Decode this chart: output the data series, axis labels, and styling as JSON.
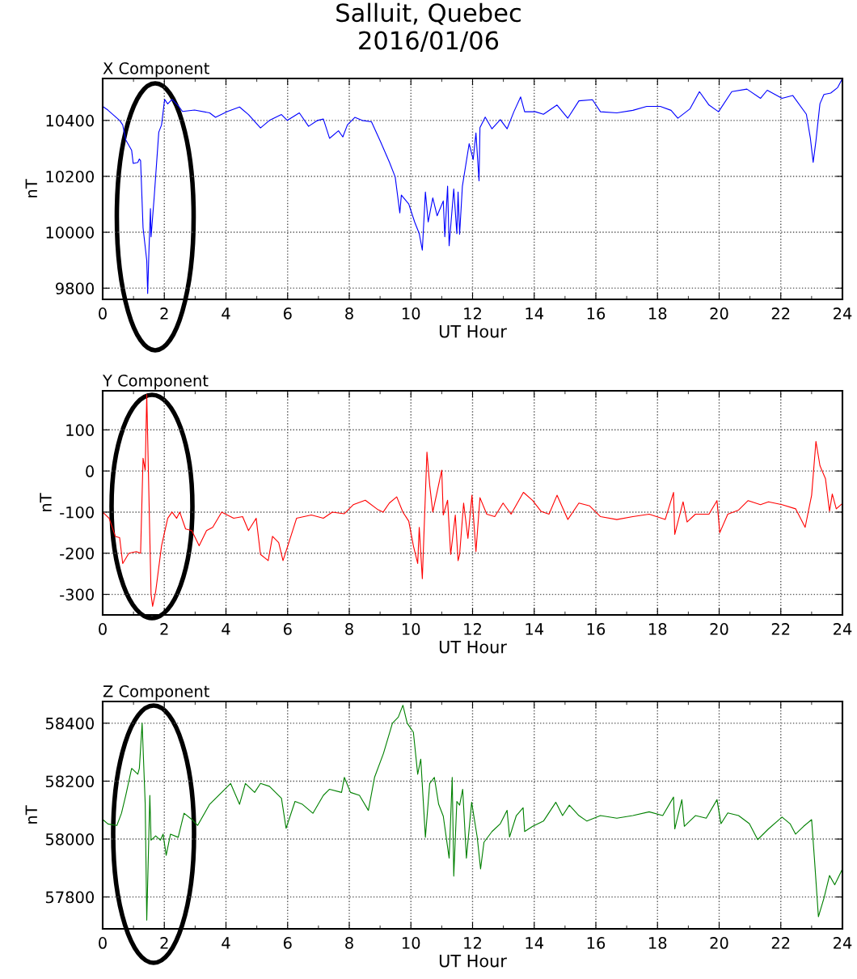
{
  "chart_data": [
    {
      "type": "line",
      "title": "Salluit, Quebec\n2016/01/06",
      "subtitle": "X Component",
      "xlabel": "UT Hour",
      "ylabel": "nT",
      "xlim": [
        0,
        24
      ],
      "xticks": [
        0,
        2,
        4,
        6,
        8,
        10,
        12,
        14,
        16,
        18,
        20,
        22,
        24
      ],
      "ylim": [
        9760,
        10550
      ],
      "yticks": [
        9800,
        10000,
        10200,
        10400
      ],
      "grid": true,
      "legend": false,
      "marker": "none",
      "line_style": "solid",
      "series": [
        {
          "color": "#0000ff",
          "x": [
            0,
            0.17,
            0.55,
            0.65,
            0.75,
            0.94,
            0.99,
            1.14,
            1.19,
            1.23,
            1.31,
            1.43,
            1.46,
            1.5,
            1.55,
            1.57,
            1.67,
            1.82,
            1.91,
            2.01,
            2.11,
            2.25,
            2.45,
            2.59,
            2.98,
            3.47,
            3.66,
            4.05,
            4.44,
            4.73,
            5.12,
            5.41,
            5.8,
            5.99,
            6.38,
            6.68,
            6.97,
            7.16,
            7.36,
            7.65,
            7.79,
            7.94,
            8.18,
            8.42,
            8.72,
            9.01,
            9.3,
            9.49,
            9.64,
            9.69,
            9.93,
            10.12,
            10.27,
            10.37,
            10.47,
            10.56,
            10.71,
            10.85,
            11.05,
            11.1,
            11.19,
            11.24,
            11.39,
            11.49,
            11.53,
            11.58,
            11.67,
            11.89,
            12.02,
            12.11,
            12.21,
            12.24,
            12.41,
            12.63,
            12.9,
            13.12,
            13.34,
            13.56,
            13.69,
            14.04,
            14.3,
            14.74,
            15.09,
            15.45,
            15.89,
            16.15,
            16.68,
            17.2,
            17.65,
            18.09,
            18.44,
            18.66,
            19.05,
            19.36,
            19.67,
            19.98,
            20.41,
            20.9,
            21.34,
            21.56,
            22.04,
            22.39,
            22.83,
            22.96,
            23.05,
            23.14,
            23.27,
            23.4,
            23.62,
            23.84,
            24
          ],
          "values": [
            10450,
            10437,
            10400,
            10384,
            10330,
            10293,
            10246,
            10250,
            10262,
            10256,
            10016,
            9899,
            9781,
            9931,
            10085,
            9984,
            10124,
            10358,
            10384,
            10475,
            10459,
            10475,
            10453,
            10432,
            10437,
            10427,
            10411,
            10432,
            10448,
            10421,
            10373,
            10400,
            10421,
            10400,
            10427,
            10379,
            10400,
            10405,
            10336,
            10363,
            10341,
            10384,
            10411,
            10400,
            10395,
            10325,
            10251,
            10198,
            10069,
            10133,
            10101,
            10037,
            9995,
            9936,
            10144,
            10037,
            10123,
            10059,
            10112,
            9984,
            10165,
            9952,
            10155,
            9995,
            10144,
            9993,
            10165,
            10317,
            10260,
            10355,
            10184,
            10374,
            10412,
            10370,
            10403,
            10370,
            10431,
            10484,
            10431,
            10431,
            10422,
            10455,
            10408,
            10470,
            10474,
            10431,
            10427,
            10436,
            10450,
            10450,
            10436,
            10408,
            10441,
            10503,
            10455,
            10431,
            10503,
            10512,
            10479,
            10508,
            10479,
            10489,
            10422,
            10336,
            10250,
            10327,
            10460,
            10493,
            10498,
            10517,
            10550
          ]
        }
      ]
    },
    {
      "type": "line",
      "subtitle": "Y Component",
      "xlabel": "UT Hour",
      "ylabel": "nT",
      "xlim": [
        0,
        24
      ],
      "xticks": [
        0,
        2,
        4,
        6,
        8,
        10,
        12,
        14,
        16,
        18,
        20,
        22,
        24
      ],
      "ylim": [
        -350,
        195
      ],
      "yticks": [
        -300,
        -200,
        -100,
        0,
        100
      ],
      "grid": true,
      "legend": false,
      "marker": "none",
      "line_style": "solid",
      "series": [
        {
          "color": "#ff0000",
          "x": [
            0,
            0.21,
            0.41,
            0.55,
            0.65,
            0.85,
            1.09,
            1.23,
            1.31,
            1.38,
            1.43,
            1.48,
            1.57,
            1.62,
            1.72,
            1.91,
            2.11,
            2.25,
            2.4,
            2.5,
            2.69,
            2.89,
            3.13,
            3.37,
            3.57,
            3.86,
            4.25,
            4.54,
            4.73,
            4.98,
            5.12,
            5.37,
            5.51,
            5.71,
            5.85,
            6.04,
            6.29,
            6.77,
            7.16,
            7.45,
            7.84,
            8.13,
            8.52,
            8.91,
            9.1,
            9.3,
            9.54,
            9.74,
            9.93,
            10.08,
            10.22,
            10.27,
            10.37,
            10.52,
            10.61,
            10.71,
            11.0,
            11.05,
            11.19,
            11.29,
            11.44,
            11.53,
            11.58,
            11.71,
            11.85,
            11.98,
            12.11,
            12.24,
            12.46,
            12.72,
            12.99,
            13.25,
            13.65,
            13.95,
            14.22,
            14.48,
            14.74,
            15.09,
            15.45,
            15.8,
            16.15,
            16.68,
            17.2,
            17.73,
            18.25,
            18.52,
            18.56,
            18.83,
            18.96,
            19.23,
            19.67,
            19.93,
            20.02,
            20.28,
            20.63,
            20.94,
            21.34,
            21.6,
            22.04,
            22.48,
            22.79,
            23.0,
            23.14,
            23.27,
            23.45,
            23.58,
            23.67,
            23.8,
            24
          ],
          "values": [
            -100,
            -115,
            -159,
            -162,
            -225,
            -200,
            -196,
            -200,
            31,
            2,
            186,
            10,
            -300,
            -329,
            -293,
            -182,
            -115,
            -100,
            -115,
            -100,
            -141,
            -145,
            -182,
            -145,
            -137,
            -100,
            -115,
            -111,
            -145,
            -115,
            -203,
            -218,
            -159,
            -174,
            -218,
            -174,
            -115,
            -107,
            -115,
            -100,
            -104,
            -82,
            -71,
            -93,
            -100,
            -78,
            -63,
            -100,
            -122,
            -182,
            -225,
            -137,
            -262,
            46,
            -35,
            -100,
            2,
            -107,
            -71,
            -203,
            -107,
            -218,
            -203,
            -78,
            -164,
            -59,
            -196,
            -65,
            -105,
            -111,
            -78,
            -105,
            -52,
            -72,
            -98,
            -105,
            -59,
            -118,
            -78,
            -85,
            -111,
            -118,
            -111,
            -105,
            -118,
            -52,
            -154,
            -75,
            -124,
            -105,
            -105,
            -72,
            -150,
            -105,
            -95,
            -72,
            -82,
            -75,
            -82,
            -92,
            -137,
            -59,
            72,
            13,
            -19,
            -98,
            -56,
            -92,
            -79
          ]
        }
      ]
    },
    {
      "type": "line",
      "subtitle": "Z Component",
      "xlabel": "UT Hour",
      "ylabel": "nT",
      "xlim": [
        0,
        24
      ],
      "xticks": [
        0,
        2,
        4,
        6,
        8,
        10,
        12,
        14,
        16,
        18,
        20,
        22,
        24
      ],
      "ylim": [
        57690,
        58475
      ],
      "yticks": [
        57800,
        58000,
        58200,
        58400
      ],
      "grid": true,
      "legend": false,
      "marker": "none",
      "line_style": "solid",
      "series": [
        {
          "color": "#008000",
          "x": [
            0,
            0.17,
            0.46,
            0.61,
            0.75,
            0.94,
            1.14,
            1.19,
            1.28,
            1.38,
            1.43,
            1.53,
            1.57,
            1.72,
            1.87,
            1.96,
            2.06,
            2.2,
            2.45,
            2.64,
            2.89,
            3.08,
            3.47,
            3.86,
            4.15,
            4.44,
            4.63,
            4.93,
            5.12,
            5.41,
            5.8,
            5.95,
            6.24,
            6.48,
            6.82,
            7.16,
            7.36,
            7.75,
            7.84,
            8.04,
            8.33,
            8.62,
            8.82,
            9.11,
            9.4,
            9.59,
            9.74,
            9.88,
            10.08,
            10.22,
            10.32,
            10.47,
            10.61,
            10.76,
            10.9,
            11.05,
            11.24,
            11.34,
            11.39,
            11.49,
            11.58,
            11.68,
            11.8,
            11.97,
            12.15,
            12.26,
            12.37,
            12.63,
            12.9,
            13.12,
            13.2,
            13.42,
            13.64,
            13.69,
            13.95,
            14.3,
            14.7,
            14.92,
            15.14,
            15.45,
            15.71,
            16.15,
            16.68,
            17.2,
            17.73,
            18.17,
            18.52,
            18.56,
            18.79,
            18.87,
            19.23,
            19.58,
            19.93,
            20.06,
            20.28,
            20.63,
            20.98,
            21.25,
            21.6,
            22.04,
            22.3,
            22.48,
            22.74,
            23.0,
            23.09,
            23.22,
            23.4,
            23.58,
            23.75,
            24
          ],
          "values": [
            58068,
            58052,
            58047,
            58089,
            58151,
            58244,
            58224,
            58244,
            58400,
            58120,
            57720,
            58151,
            57996,
            58011,
            57996,
            58017,
            57944,
            58017,
            58006,
            58089,
            58068,
            58047,
            58120,
            58161,
            58192,
            58120,
            58192,
            58161,
            58192,
            58182,
            58141,
            58037,
            58130,
            58120,
            58089,
            58151,
            58172,
            58161,
            58213,
            58161,
            58151,
            58099,
            58213,
            58296,
            58400,
            58421,
            58462,
            58400,
            58369,
            58224,
            58276,
            58006,
            58192,
            58213,
            58120,
            58079,
            57934,
            58213,
            57872,
            58130,
            58117,
            58172,
            57934,
            58127,
            58007,
            57897,
            57989,
            58026,
            58053,
            58099,
            58007,
            58081,
            58108,
            58026,
            58044,
            58062,
            58127,
            58081,
            58117,
            58081,
            58062,
            58081,
            58072,
            58081,
            58094,
            58081,
            58145,
            58035,
            58136,
            58044,
            58081,
            58072,
            58136,
            58053,
            58090,
            58081,
            58053,
            57998,
            58035,
            58076,
            58053,
            58017,
            58044,
            58067,
            57934,
            57732,
            57796,
            57874,
            57842,
            57897
          ]
        }
      ]
    }
  ]
}
